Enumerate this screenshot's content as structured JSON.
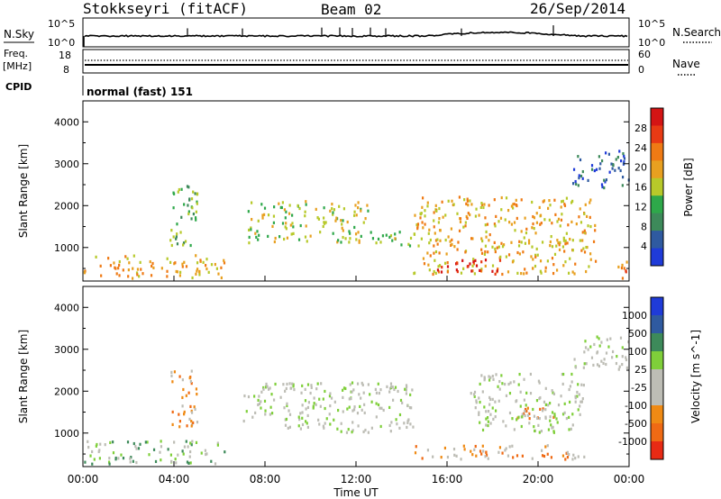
{
  "header": {
    "station": "Stokkseyri (fitACF)",
    "beam": "Beam 02",
    "date": "26/Sep/2014"
  },
  "strip": {
    "nsky_label": "N.Sky",
    "nsearch_label": "N.Search",
    "left_ticks": [
      "10^5",
      "10^0"
    ],
    "right_ticks": [
      "10^5",
      "10^0"
    ],
    "freq_label": "Freq.",
    "freq_unit": "[MHz]",
    "freq_ticks": [
      "18",
      "8"
    ],
    "nave_label": "Nave",
    "nave_ticks": [
      "60",
      "0"
    ],
    "cpid_label": "CPID",
    "cpid_value": "normal (fast) 151"
  },
  "colors": {
    "power": [
      "#1f3bd8",
      "#2f5aa0",
      "#3d8a5a",
      "#2ea84a",
      "#b7c92a",
      "#e8a020",
      "#ef7a14",
      "#e83a14",
      "#d41414"
    ],
    "velocity": [
      "#1f3bd8",
      "#2f5aa0",
      "#3d8a5a",
      "#7fcf3a",
      "#bdbdb5",
      "#bdbdb5",
      "#ef8a14",
      "#ef6a14",
      "#e82a14"
    ]
  },
  "chart_data": [
    {
      "type": "heatmap",
      "name": "power",
      "ylabel": "Slant Range [km]",
      "xlabel": "",
      "yticks": [
        "1000",
        "2000",
        "3000",
        "4000"
      ],
      "ylim": [
        200,
        4500
      ],
      "xlim": [
        "00:00",
        "24:00"
      ],
      "colorbar_label": "Power [dB]",
      "colorbar_ticks": [
        "4",
        "8",
        "12",
        "16",
        "20",
        "24",
        "28"
      ],
      "regions": [
        {
          "h0": 0.0,
          "h1": 6.2,
          "r0": 250,
          "r1": 800,
          "level": 5
        },
        {
          "h0": 3.8,
          "h1": 5.0,
          "r0": 1000,
          "r1": 2600,
          "level": 3
        },
        {
          "h0": 7.2,
          "h1": 12.5,
          "r0": 1100,
          "r1": 2100,
          "level": 4
        },
        {
          "h0": 12.5,
          "h1": 14.5,
          "r0": 1000,
          "r1": 1400,
          "level": 4
        },
        {
          "h0": 14.5,
          "h1": 22.5,
          "r0": 350,
          "r1": 2200,
          "level": 5
        },
        {
          "h0": 15.5,
          "h1": 18.5,
          "r0": 350,
          "r1": 700,
          "level": 8
        },
        {
          "h0": 21.5,
          "h1": 24.0,
          "r0": 2400,
          "r1": 3300,
          "level": 1
        },
        {
          "h0": 23.2,
          "h1": 24.0,
          "r0": 250,
          "r1": 700,
          "level": 6
        }
      ]
    },
    {
      "type": "heatmap",
      "name": "velocity",
      "ylabel": "Slant Range [km]",
      "xlabel": "Time UT",
      "yticks": [
        "1000",
        "2000",
        "3000",
        "4000"
      ],
      "ylim": [
        200,
        4500
      ],
      "xticks": [
        "00:00",
        "04:00",
        "08:00",
        "12:00",
        "16:00",
        "20:00",
        "00:00"
      ],
      "colorbar_label": "Velocity [m s^-1]",
      "colorbar_ticks": [
        "1000",
        "500",
        "100",
        "25",
        "-25",
        "-100",
        "-500",
        "-1000"
      ],
      "regions": [
        {
          "h0": 0.0,
          "h1": 6.2,
          "r0": 250,
          "r1": 800,
          "level": 3
        },
        {
          "h0": 3.8,
          "h1": 5.0,
          "r0": 1100,
          "r1": 2500,
          "level": 6
        },
        {
          "h0": 7.0,
          "h1": 14.5,
          "r0": 1000,
          "r1": 2200,
          "level": 4
        },
        {
          "h0": 14.5,
          "h1": 18.5,
          "r0": 350,
          "r1": 700,
          "level": 6
        },
        {
          "h0": 18.5,
          "h1": 22.0,
          "r0": 350,
          "r1": 700,
          "level": 6
        },
        {
          "h0": 19.0,
          "h1": 20.8,
          "r0": 1300,
          "r1": 1600,
          "level": 6
        },
        {
          "h0": 17.0,
          "h1": 22.0,
          "r0": 1000,
          "r1": 2400,
          "level": 4
        },
        {
          "h0": 21.5,
          "h1": 24.0,
          "r0": 2500,
          "r1": 3300,
          "level": 4
        }
      ]
    }
  ]
}
